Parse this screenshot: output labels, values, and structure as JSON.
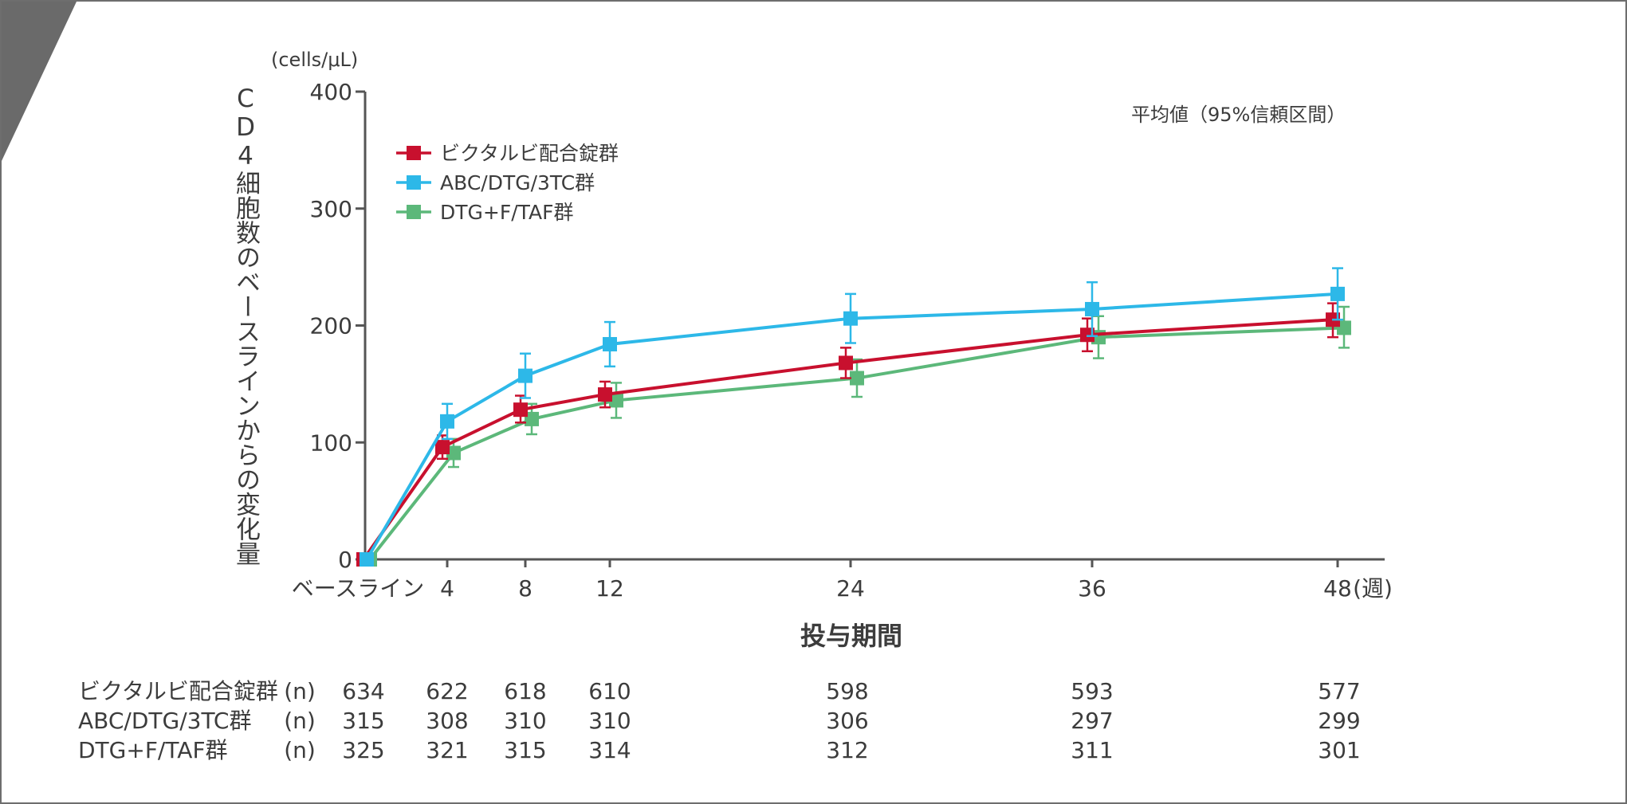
{
  "chart_data": {
    "type": "line",
    "unit_label": "(cells/μL)",
    "ylabel": "CD4細胞数のベースラインからの変化量",
    "xlabel": "投与期間",
    "x_unit": "(週)",
    "x": [
      0,
      4,
      8,
      12,
      24,
      36,
      48
    ],
    "x_tick_labels": [
      "ベースライン",
      "4",
      "8",
      "12",
      "24",
      "36",
      "48"
    ],
    "ylim": [
      0,
      400
    ],
    "y_ticks": [
      0,
      100,
      200,
      300,
      400
    ],
    "annotation": "平均値（95%信頼区間）",
    "legend_position": "top-left",
    "series": [
      {
        "name": "ビクタルビ配合錠群",
        "color": "#c8102e",
        "values": [
          0,
          96,
          128,
          141,
          168,
          192,
          205
        ],
        "ci_low": [
          0,
          86,
          117,
          130,
          155,
          178,
          190
        ],
        "ci_high": [
          0,
          106,
          140,
          152,
          181,
          206,
          219
        ]
      },
      {
        "name": "ABC/DTG/3TC群",
        "color": "#2db8e8",
        "values": [
          0,
          118,
          157,
          184,
          206,
          214,
          227
        ],
        "ci_low": [
          0,
          103,
          138,
          165,
          185,
          191,
          205
        ],
        "ci_high": [
          0,
          133,
          176,
          203,
          227,
          237,
          249
        ]
      },
      {
        "name": "DTG+F/TAF群",
        "color": "#5cb87a",
        "values": [
          0,
          91,
          120,
          136,
          155,
          190,
          198
        ],
        "ci_low": [
          0,
          79,
          107,
          121,
          139,
          172,
          181
        ],
        "ci_high": [
          0,
          103,
          133,
          151,
          171,
          208,
          216
        ]
      }
    ],
    "n_table": {
      "label": "(n)",
      "rows": [
        {
          "name": "ビクタルビ配合錠群",
          "values": [
            "634",
            "622",
            "618",
            "610",
            "598",
            "593",
            "577"
          ]
        },
        {
          "name": "ABC/DTG/3TC群",
          "values": [
            "315",
            "308",
            "310",
            "310",
            "306",
            "297",
            "299"
          ]
        },
        {
          "name": "DTG+F/TAF群",
          "values": [
            "325",
            "321",
            "315",
            "314",
            "312",
            "311",
            "301"
          ]
        }
      ]
    }
  }
}
